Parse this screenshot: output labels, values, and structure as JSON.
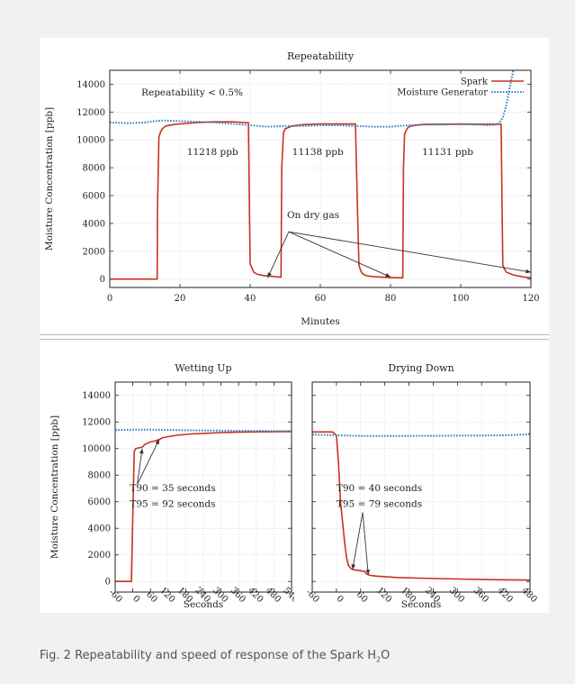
{
  "caption": {
    "prefix": "Fig. 2 Repeatability and speed of response of the Spark H",
    "subscript": "2",
    "suffix": "O"
  },
  "colors": {
    "spark": "#c8321e",
    "generator": "#2f7fc1",
    "grid": "#bdbdbd",
    "axis": "#222222"
  },
  "chart_data": [
    {
      "type": "line",
      "title": "Repeatability",
      "xlabel": "Minutes",
      "ylabel": "Moisture Concentration [ppb]",
      "xlim": [
        0,
        120
      ],
      "ylim": [
        -600,
        15000
      ],
      "xticks": [
        0,
        20,
        40,
        60,
        80,
        100,
        120
      ],
      "yticks": [
        0,
        2000,
        4000,
        6000,
        8000,
        10000,
        12000,
        14000
      ],
      "grid": true,
      "legend_position": "top-right",
      "annotations": [
        {
          "text": "Repeatability < 0.5%",
          "x": 9,
          "y": 13200
        },
        {
          "text": "11218 ppb",
          "x": 22,
          "y": 8900
        },
        {
          "text": "11138 ppb",
          "x": 52,
          "y": 8900
        },
        {
          "text": "11131 ppb",
          "x": 89,
          "y": 8900
        },
        {
          "text": "On dry gas",
          "x": 50.5,
          "y": 4400
        }
      ],
      "arrows": [
        {
          "from": [
            51,
            3400
          ],
          "to": [
            45,
            100
          ]
        },
        {
          "from": [
            51,
            3400
          ],
          "to": [
            80,
            150
          ]
        },
        {
          "from": [
            51,
            3400
          ],
          "to": [
            120,
            500
          ]
        }
      ],
      "series": [
        {
          "name": "Spark",
          "style": "solid",
          "x": [
            0,
            13.5,
            13.6,
            14,
            14.5,
            15,
            16,
            18,
            20,
            25,
            30,
            35,
            39.5,
            39.8,
            40,
            40.5,
            41,
            42,
            44,
            46,
            48,
            48.8,
            49,
            49.5,
            50,
            52,
            55,
            60,
            65,
            70,
            70.6,
            71,
            71.5,
            72,
            73,
            75,
            78,
            82,
            83.5,
            83.7,
            84,
            84.5,
            85,
            86,
            88,
            90,
            95,
            100,
            105,
            110,
            111.5,
            111.8,
            112,
            112.5,
            113,
            115,
            118,
            120
          ],
          "y": [
            0,
            0,
            5000,
            10200,
            10600,
            10800,
            11000,
            11100,
            11150,
            11250,
            11300,
            11300,
            11230,
            5000,
            1100,
            800,
            500,
            350,
            250,
            200,
            150,
            150,
            8000,
            10500,
            10800,
            11000,
            11100,
            11150,
            11140,
            11140,
            5000,
            1000,
            600,
            400,
            250,
            180,
            130,
            100,
            100,
            8000,
            10400,
            10700,
            10900,
            11000,
            11080,
            11120,
            11130,
            11130,
            11130,
            11130,
            11130,
            5000,
            1000,
            700,
            500,
            300,
            150,
            100
          ]
        },
        {
          "name": "Moisture Generator",
          "style": "dotted",
          "x": [
            0,
            5,
            10,
            13,
            15,
            20,
            25,
            30,
            35,
            40,
            45,
            50,
            55,
            60,
            65,
            70,
            75,
            80,
            85,
            90,
            95,
            100,
            105,
            108,
            110,
            111,
            112,
            113,
            114,
            115
          ],
          "y": [
            11250,
            11200,
            11250,
            11350,
            11400,
            11350,
            11300,
            11250,
            11150,
            11050,
            10950,
            11000,
            11000,
            11050,
            11050,
            11000,
            10950,
            10950,
            11050,
            11100,
            11100,
            11150,
            11100,
            11050,
            11100,
            11200,
            11600,
            12500,
            13800,
            15000
          ]
        }
      ]
    },
    {
      "type": "line",
      "title": "Wetting Up",
      "xlabel": "Seconds",
      "ylabel": "Moisture Concentration [ppb]",
      "xlim": [
        -60,
        540
      ],
      "ylim": [
        -800,
        15000
      ],
      "xticks": [
        -60,
        0,
        60,
        120,
        180,
        240,
        300,
        360,
        420,
        480,
        540
      ],
      "yticks": [
        0,
        2000,
        4000,
        6000,
        8000,
        10000,
        12000,
        14000
      ],
      "grid": true,
      "annotations": [
        {
          "text": "T90 = 35 seconds",
          "x": -10,
          "y": 6800
        },
        {
          "text": "T95 = 92 seconds",
          "x": -10,
          "y": 5600
        }
      ],
      "arrows": [
        {
          "from": [
            15,
            7300
          ],
          "to": [
            32,
            10000
          ]
        },
        {
          "from": [
            15,
            7300
          ],
          "to": [
            90,
            10700
          ]
        }
      ],
      "series": [
        {
          "name": "Spark",
          "style": "solid",
          "x": [
            -60,
            -5,
            0,
            5,
            10,
            20,
            30,
            35,
            40,
            50,
            60,
            80,
            92,
            100,
            120,
            150,
            200,
            250,
            300,
            350,
            400,
            450,
            500,
            540
          ],
          "y": [
            0,
            0,
            5000,
            9800,
            10000,
            10050,
            10100,
            10150,
            10300,
            10400,
            10500,
            10600,
            10700,
            10800,
            10900,
            11000,
            11100,
            11150,
            11200,
            11230,
            11250,
            11260,
            11270,
            11280
          ]
        },
        {
          "name": "Moisture Generator",
          "style": "dotted",
          "x": [
            -60,
            0,
            60,
            120,
            180,
            240,
            300,
            360,
            420,
            480,
            540
          ],
          "y": [
            11400,
            11420,
            11420,
            11400,
            11380,
            11360,
            11350,
            11340,
            11330,
            11320,
            11320
          ]
        }
      ]
    },
    {
      "type": "line",
      "title": "Drying Down",
      "xlabel": "Seconds",
      "ylabel": "",
      "xlim": [
        -60,
        480
      ],
      "ylim": [
        -800,
        15000
      ],
      "xticks": [
        -60,
        0,
        60,
        120,
        180,
        240,
        300,
        360,
        420,
        480
      ],
      "yticks": [
        0,
        2000,
        4000,
        6000,
        8000,
        10000,
        12000,
        14000
      ],
      "grid": true,
      "annotations": [
        {
          "text": "T90 = 40 seconds",
          "x": 0,
          "y": 6800
        },
        {
          "text": "T95 = 79 seconds",
          "x": 0,
          "y": 5600
        }
      ],
      "arrows": [
        {
          "from": [
            65,
            5200
          ],
          "to": [
            40,
            900
          ]
        },
        {
          "from": [
            65,
            5200
          ],
          "to": [
            79,
            500
          ]
        }
      ],
      "series": [
        {
          "name": "Spark",
          "style": "solid",
          "x": [
            -60,
            -10,
            0,
            5,
            10,
            20,
            25,
            30,
            35,
            40,
            50,
            60,
            70,
            75,
            79,
            85,
            100,
            150,
            200,
            300,
            400,
            480
          ],
          "y": [
            11250,
            11250,
            11000,
            9000,
            6000,
            3000,
            1800,
            1200,
            1000,
            900,
            850,
            800,
            750,
            550,
            500,
            450,
            400,
            300,
            250,
            180,
            130,
            100
          ]
        },
        {
          "name": "Moisture Generator",
          "style": "dotted",
          "x": [
            -60,
            0,
            60,
            120,
            180,
            240,
            300,
            360,
            420,
            460,
            480
          ],
          "y": [
            11050,
            11000,
            10950,
            10950,
            10950,
            10960,
            10970,
            10980,
            11000,
            11050,
            11100
          ]
        }
      ]
    }
  ]
}
